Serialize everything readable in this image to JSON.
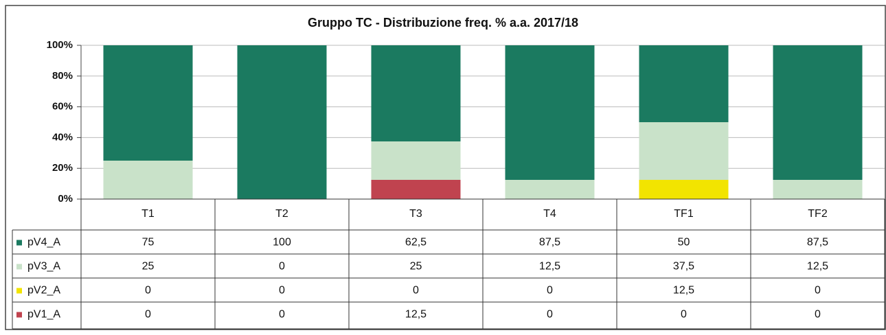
{
  "chart_data": {
    "type": "stacked_bar",
    "title": "Gruppo TC - Distribuzione freq. % a.a. 2017/18",
    "categories": [
      "T1",
      "T2",
      "T3",
      "T4",
      "TF1",
      "TF2"
    ],
    "series": [
      {
        "name": "pV4_A",
        "color": "#1b7a60",
        "values": [
          75,
          100,
          62.5,
          87.5,
          50,
          87.5
        ],
        "value_labels": [
          "75",
          "100",
          "62,5",
          "87,5",
          "50",
          "87,5"
        ]
      },
      {
        "name": "pV3_A",
        "color": "#c9e2c9",
        "values": [
          25,
          0,
          25,
          12.5,
          37.5,
          12.5
        ],
        "value_labels": [
          "25",
          "0",
          "25",
          "12,5",
          "37,5",
          "12,5"
        ]
      },
      {
        "name": "pV2_A",
        "color": "#f2e400",
        "values": [
          0,
          0,
          0,
          0,
          12.5,
          0
        ],
        "value_labels": [
          "0",
          "0",
          "0",
          "0",
          "12,5",
          "0"
        ]
      },
      {
        "name": "pV1_A",
        "color": "#c0434f",
        "values": [
          0,
          0,
          12.5,
          0,
          0,
          0
        ],
        "value_labels": [
          "0",
          "0",
          "12,5",
          "0",
          "0",
          "0"
        ]
      }
    ],
    "ylim": [
      0,
      100
    ],
    "yticks": [
      {
        "value": 0,
        "label": "0%"
      },
      {
        "value": 20,
        "label": "20%"
      },
      {
        "value": 40,
        "label": "40%"
      },
      {
        "value": 60,
        "label": "60%"
      },
      {
        "value": 80,
        "label": "80%"
      },
      {
        "value": 100,
        "label": "100%"
      }
    ],
    "grid": true
  }
}
